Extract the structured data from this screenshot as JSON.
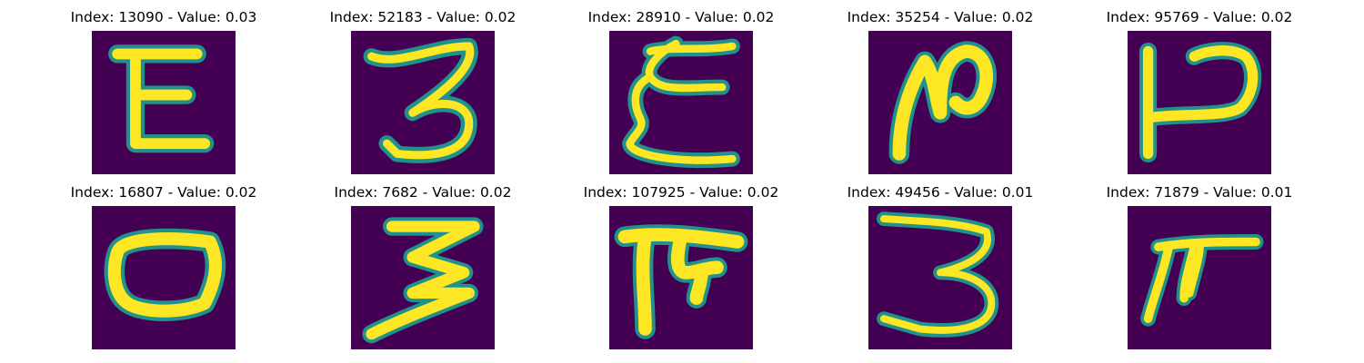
{
  "colors": {
    "background": "#440154",
    "stroke_mid": "#21918c",
    "stroke_core": "#fde725"
  },
  "panels": [
    {
      "title": "Index: 13090 - Value: 0.03",
      "depicts": "E-shaped glyph"
    },
    {
      "title": "Index: 52183 - Value: 0.02",
      "depicts": "3-shaped glyph"
    },
    {
      "title": "Index: 28910 - Value: 0.02",
      "depicts": "E-shaped glyph"
    },
    {
      "title": "Index: 35254 - Value: 0.02",
      "depicts": "N-shaped glyph"
    },
    {
      "title": "Index: 95769 - Value: 0.02",
      "depicts": "P-shaped glyph"
    },
    {
      "title": "Index: 16807 - Value: 0.02",
      "depicts": "O-shaped glyph"
    },
    {
      "title": "Index: 7682 - Value: 0.02",
      "depicts": "3-shaped glyph"
    },
    {
      "title": "Index: 107925 - Value: 0.02",
      "depicts": "T-shaped glyph"
    },
    {
      "title": "Index: 49456 - Value: 0.01",
      "depicts": "3-shaped glyph"
    },
    {
      "title": "Index: 71879 - Value: 0.01",
      "depicts": "T-shaped glyph"
    }
  ]
}
